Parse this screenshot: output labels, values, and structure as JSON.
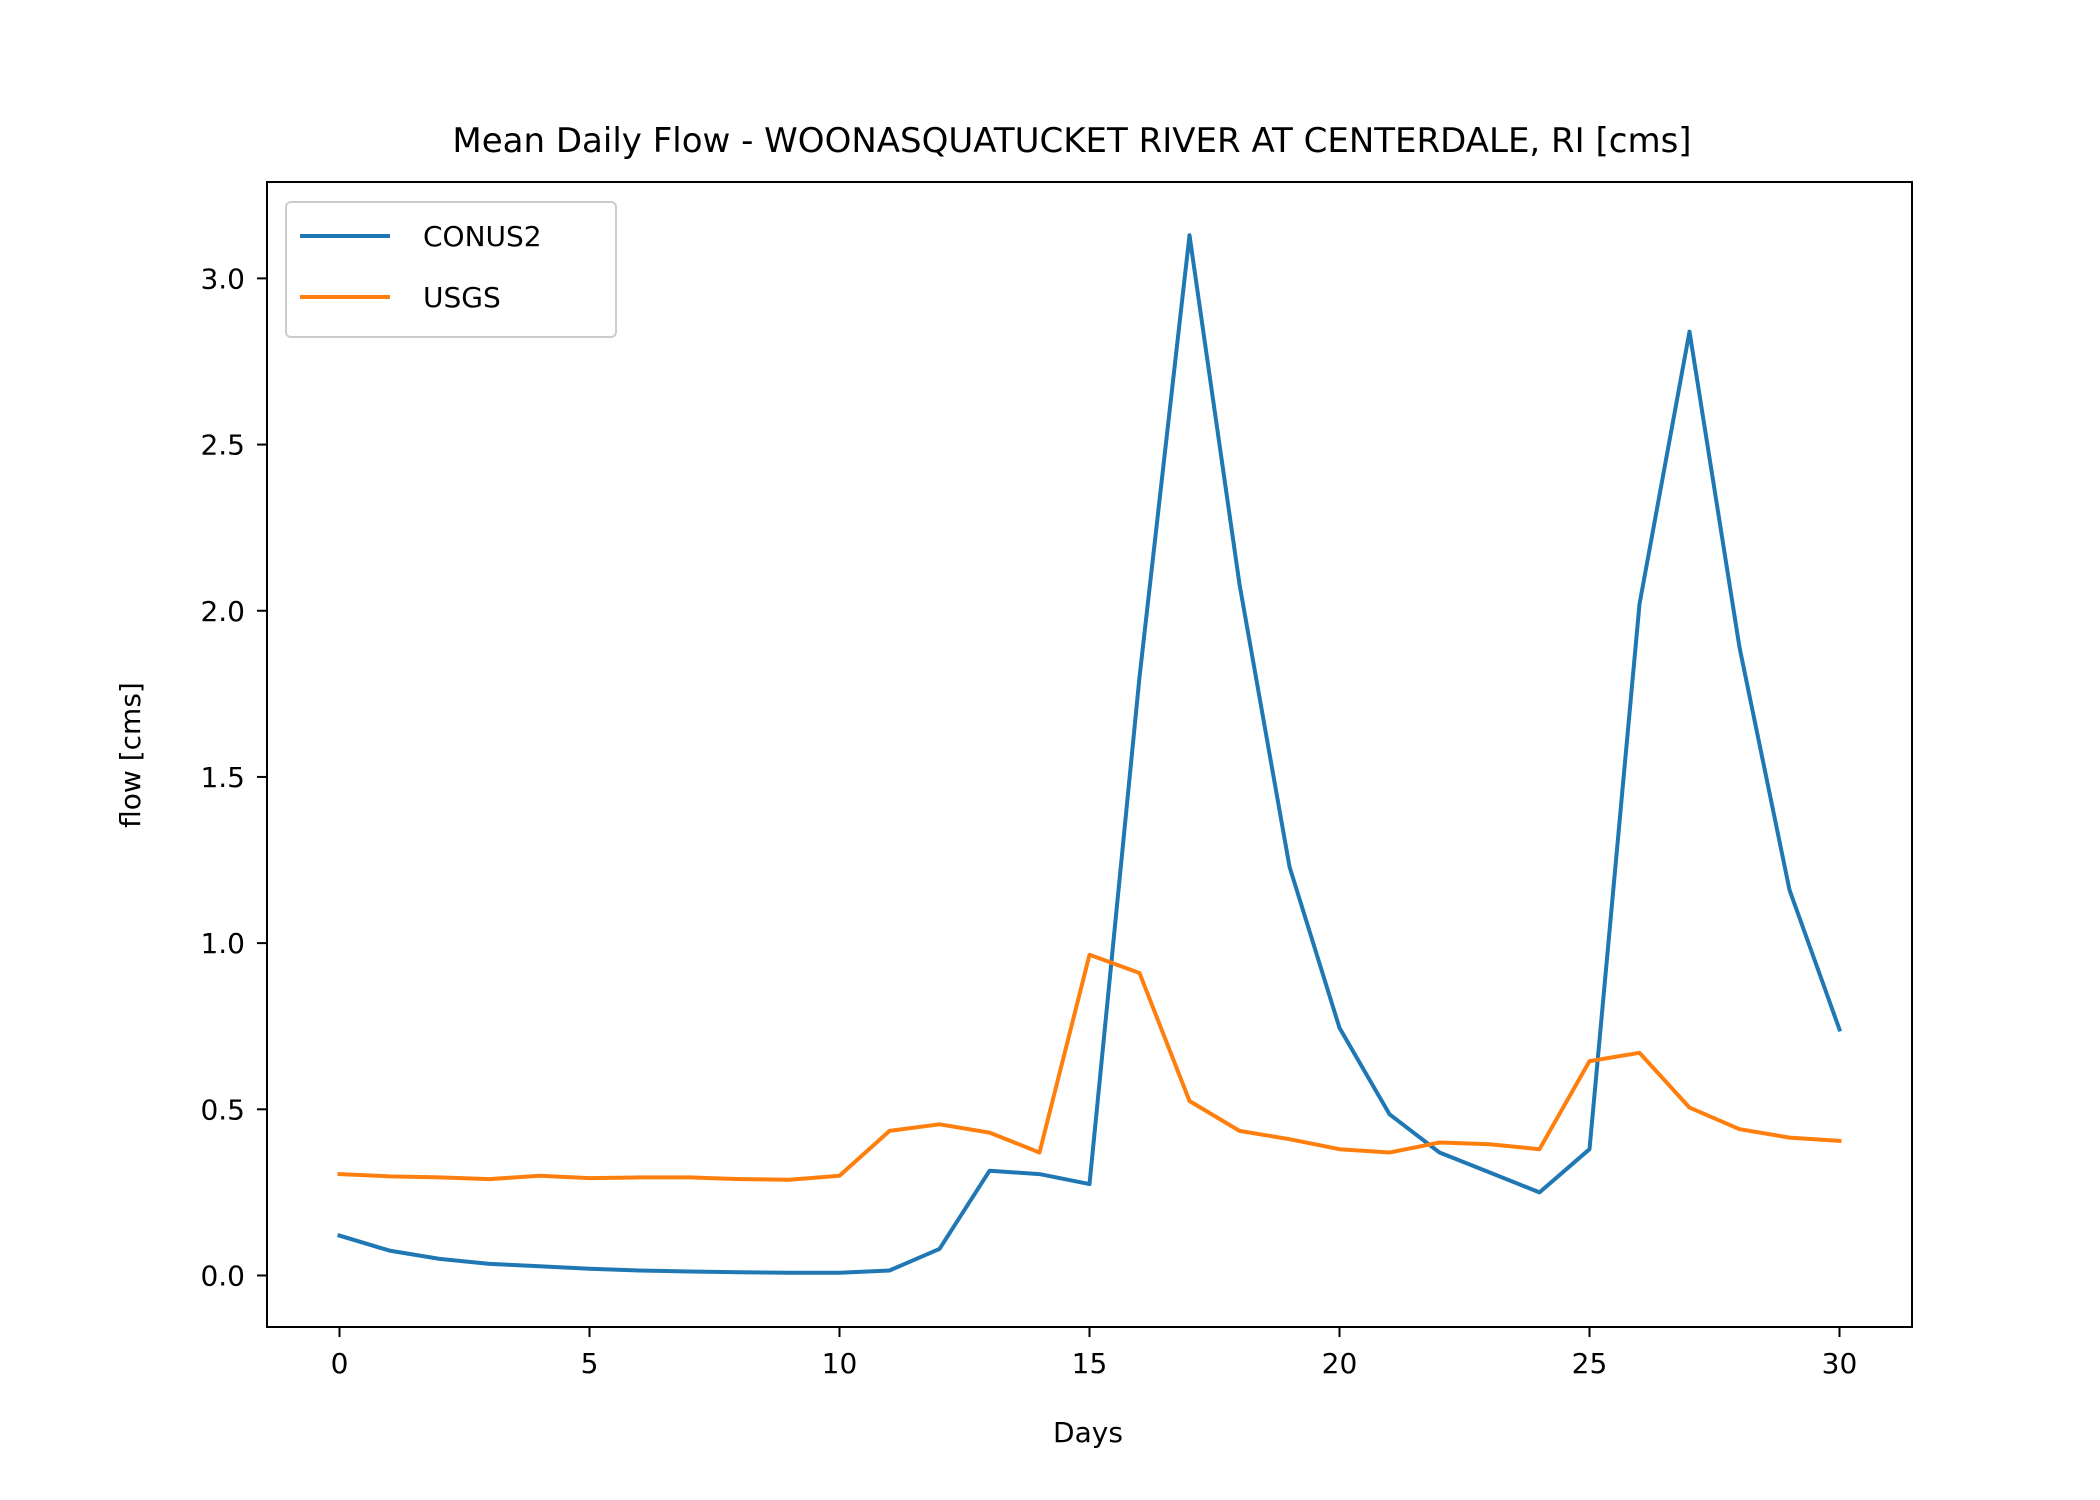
{
  "chart_data": {
    "type": "line",
    "title": "Mean Daily Flow - WOONASQUATUCKET RIVER AT CENTERDALE, RI [cms]",
    "xlabel": "Days",
    "ylabel": "flow [cms]",
    "xlim": [
      -1.45,
      31.45
    ],
    "ylim": [
      -0.155,
      3.29
    ],
    "xticks": [
      0,
      5,
      10,
      15,
      20,
      25,
      30
    ],
    "xtick_labels": [
      "0",
      "5",
      "10",
      "15",
      "20",
      "25",
      "30"
    ],
    "yticks": [
      0.0,
      0.5,
      1.0,
      1.5,
      2.0,
      2.5,
      3.0
    ],
    "ytick_labels": [
      "0.0",
      "0.5",
      "1.0",
      "1.5",
      "2.0",
      "2.5",
      "3.0"
    ],
    "grid": false,
    "legend_position": "upper-left",
    "x": [
      0,
      1,
      2,
      3,
      4,
      5,
      6,
      7,
      8,
      9,
      10,
      11,
      12,
      13,
      14,
      15,
      16,
      17,
      18,
      19,
      20,
      21,
      22,
      23,
      24,
      25,
      26,
      27,
      28,
      29,
      30
    ],
    "series": [
      {
        "name": "CONUS2",
        "color": "#1f77b4",
        "values": [
          0.12,
          0.075,
          0.05,
          0.035,
          0.028,
          0.02,
          0.015,
          0.012,
          0.01,
          0.008,
          0.008,
          0.015,
          0.08,
          0.315,
          0.305,
          0.275,
          1.8,
          3.13,
          2.08,
          1.23,
          0.745,
          0.485,
          0.37,
          0.31,
          0.25,
          0.38,
          2.02,
          2.84,
          1.89,
          1.16,
          0.74
        ]
      },
      {
        "name": "USGS",
        "color": "#ff7f0e",
        "values": [
          0.305,
          0.298,
          0.295,
          0.29,
          0.3,
          0.293,
          0.295,
          0.295,
          0.29,
          0.288,
          0.3,
          0.435,
          0.455,
          0.43,
          0.37,
          0.965,
          0.91,
          0.525,
          0.435,
          0.41,
          0.38,
          0.37,
          0.4,
          0.395,
          0.38,
          0.645,
          0.67,
          0.505,
          0.44,
          0.415,
          0.405
        ]
      }
    ]
  }
}
